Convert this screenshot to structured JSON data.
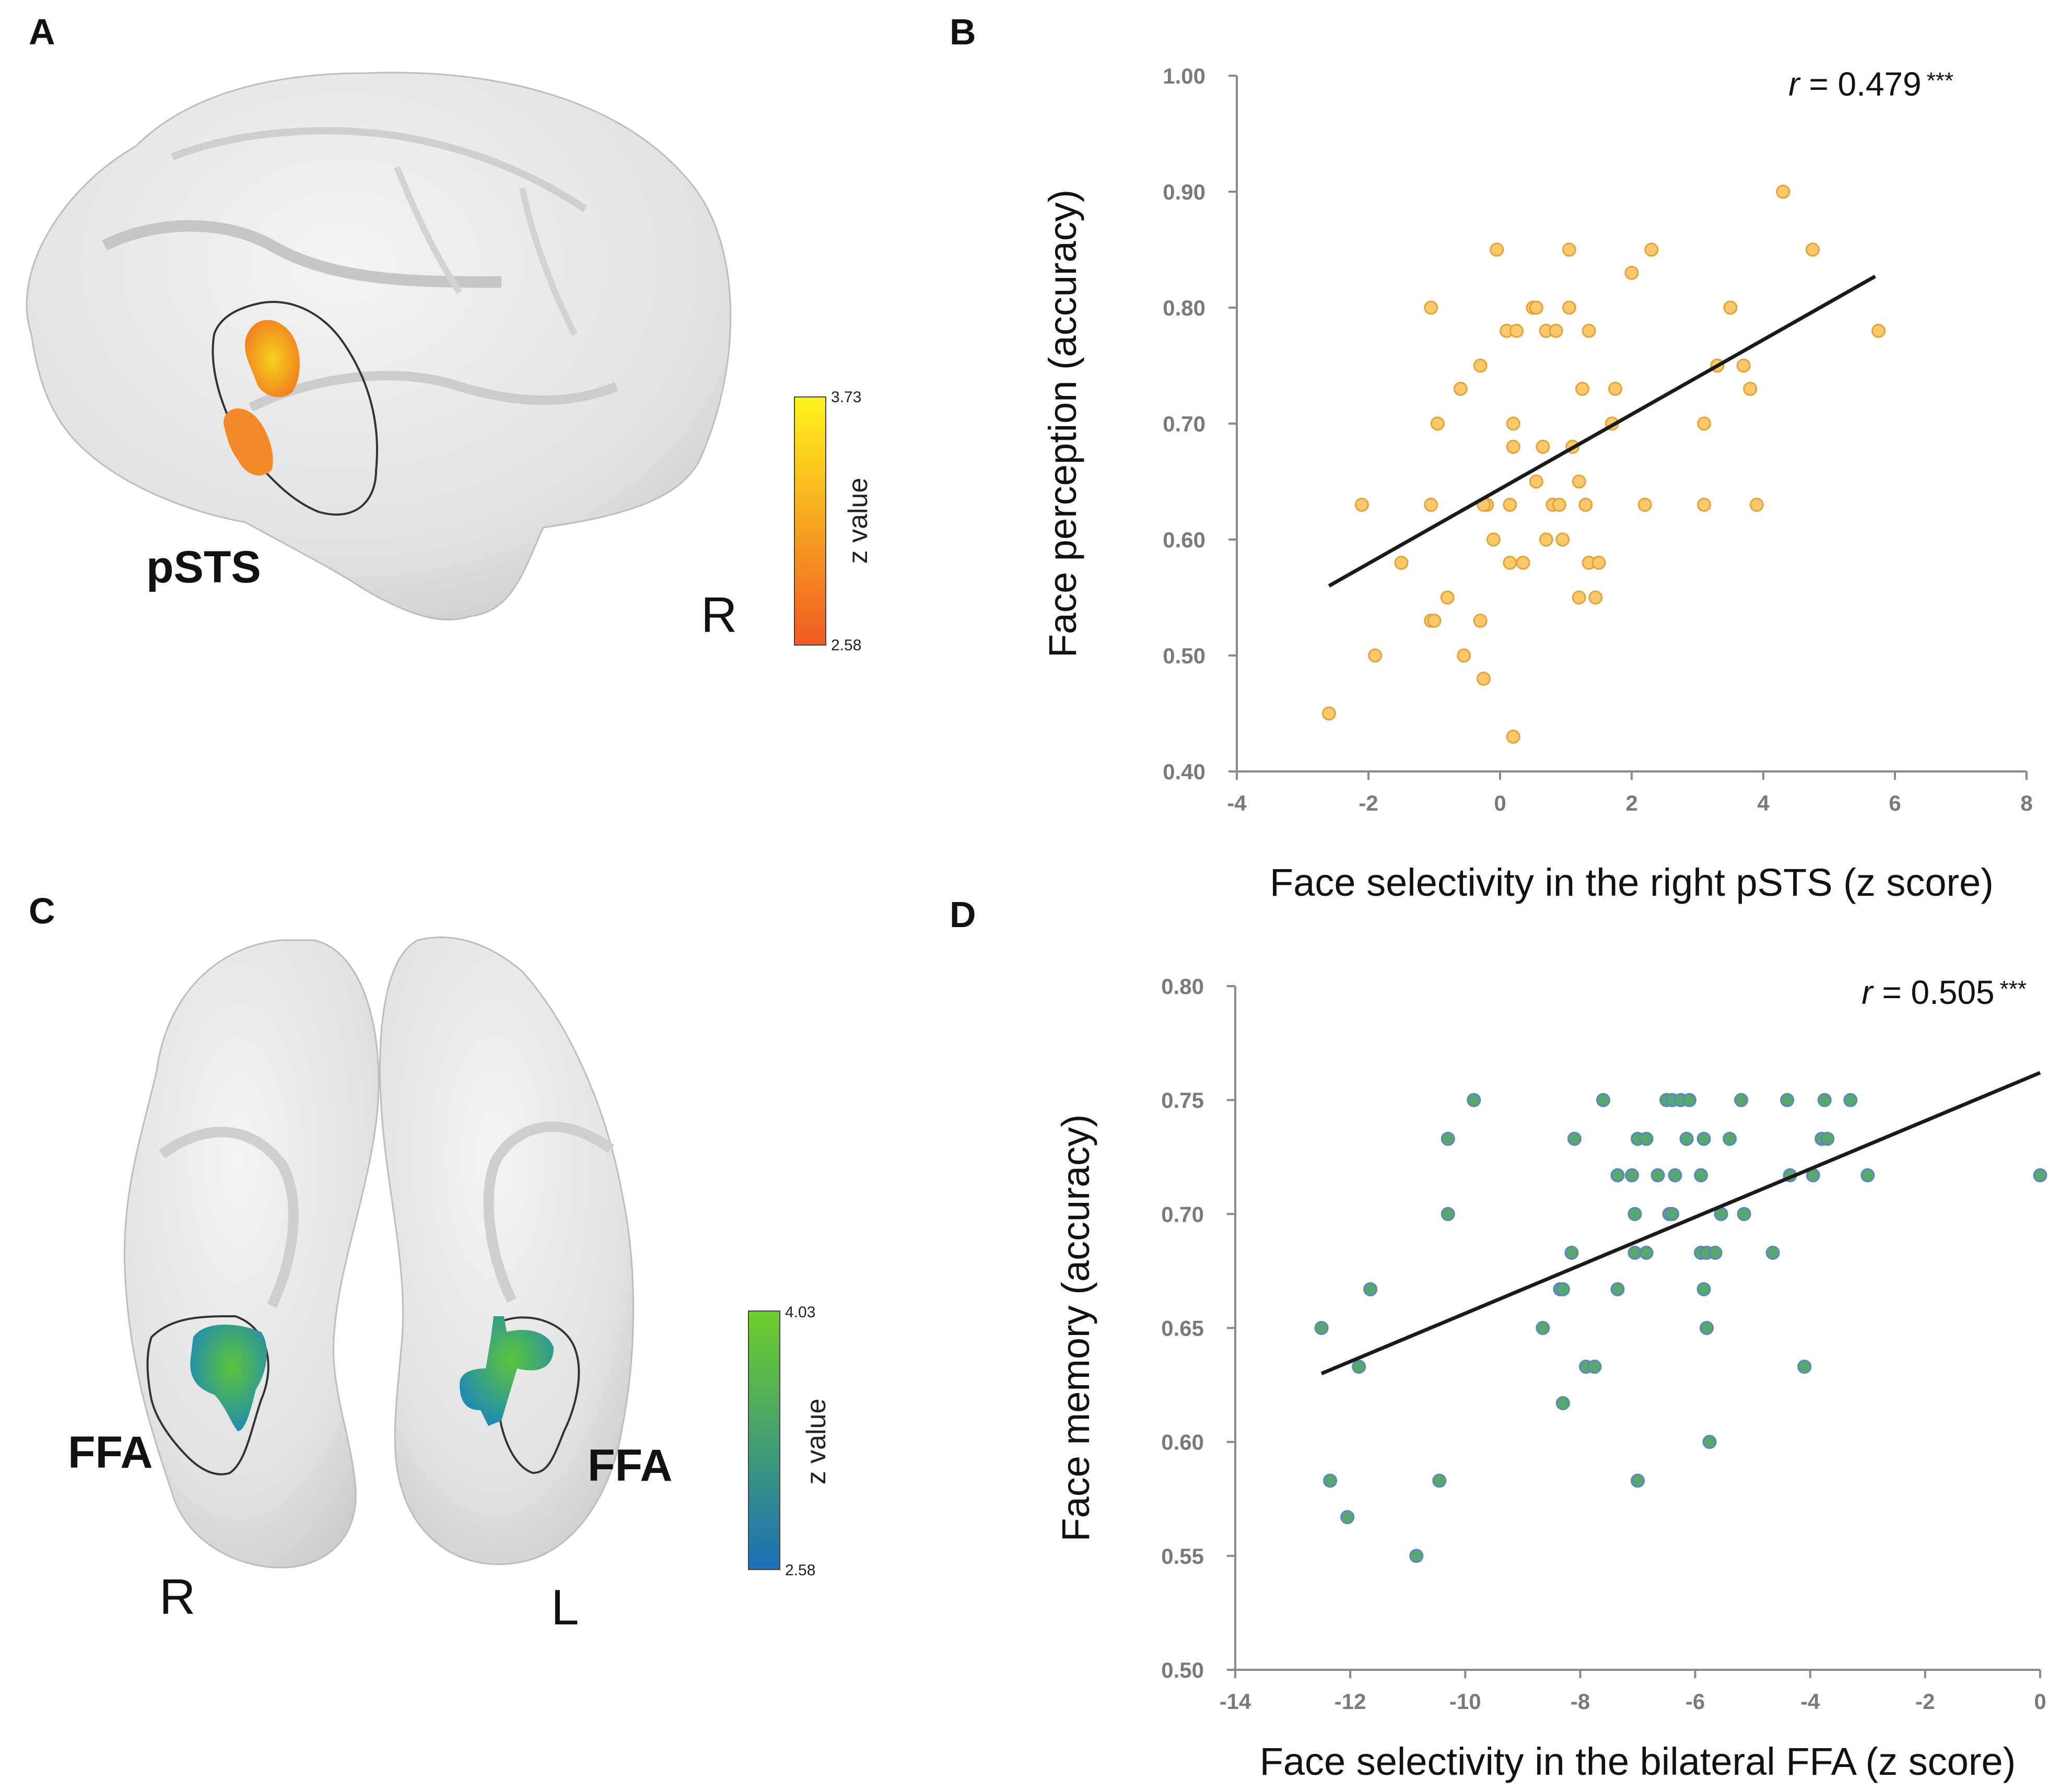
{
  "colors": {
    "orange_dot_fill": "#fbc86b",
    "orange_dot_stroke": "#e3a43c",
    "green_dot_fill": "#57a86c",
    "green_dot_stroke": "#5a86c8",
    "fit_line": "#1a1a1a",
    "axis": "#8a8a8a",
    "brain": "#e4e4e4",
    "cbar_orange_bottom": "#f05a23",
    "cbar_orange_top": "#fff41e",
    "cbar_green_bottom": "#1a6fb8",
    "cbar_green_top": "#6ecf2a"
  },
  "panels": {
    "a": {
      "letter": "A",
      "region_label": "pSTS",
      "hemisphere": "R",
      "colorbar": {
        "max": "3.73",
        "min": "2.58",
        "title": "z value"
      }
    },
    "c": {
      "letter": "C",
      "region_label_right": "FFA",
      "region_label_left": "FFA",
      "hemisphere_right": "R",
      "hemisphere_left": "L",
      "colorbar": {
        "max": "4.03",
        "min": "2.58",
        "title": "z value"
      }
    },
    "b": {
      "letter": "B"
    },
    "d": {
      "letter": "D"
    }
  },
  "chart_data": [
    {
      "id": "B",
      "type": "scatter",
      "xlabel": "Face selectivity in the right pSTS  (z score)",
      "ylabel": "Face perception  (accuracy)",
      "xlim": [
        -4,
        8
      ],
      "ylim": [
        0.4,
        1.0
      ],
      "xticks": [
        -4,
        -2,
        0,
        2,
        4,
        6,
        8
      ],
      "xtick_labels": [
        "-4",
        "-2",
        "0",
        "2",
        "4",
        "6",
        "8"
      ],
      "yticks": [
        0.4,
        0.5,
        0.6,
        0.7,
        0.8,
        0.9,
        1.0
      ],
      "ytick_labels": [
        "0.40",
        "0.50",
        "0.60",
        "0.70",
        "0.80",
        "0.90",
        "1.00"
      ],
      "stat_r": "r",
      "stat_value": " = 0.479",
      "stat_sig": "***",
      "fit_line": [
        [
          -2.6,
          0.56
        ],
        [
          5.7,
          0.827
        ]
      ],
      "points": [
        [
          -2.6,
          0.45
        ],
        [
          -2.1,
          0.63
        ],
        [
          -1.9,
          0.5
        ],
        [
          -1.5,
          0.58
        ],
        [
          -1.05,
          0.63
        ],
        [
          -1.05,
          0.53
        ],
        [
          -1.0,
          0.53
        ],
        [
          -1.05,
          0.8
        ],
        [
          -0.95,
          0.7
        ],
        [
          -0.8,
          0.55
        ],
        [
          -0.6,
          0.73
        ],
        [
          -0.55,
          0.5
        ],
        [
          -0.3,
          0.75
        ],
        [
          -0.3,
          0.53
        ],
        [
          -0.25,
          0.48
        ],
        [
          -0.2,
          0.63
        ],
        [
          -0.25,
          0.63
        ],
        [
          -0.1,
          0.6
        ],
        [
          -0.05,
          0.85
        ],
        [
          0.1,
          0.78
        ],
        [
          0.15,
          0.63
        ],
        [
          0.2,
          0.68
        ],
        [
          0.2,
          0.43
        ],
        [
          0.2,
          0.7
        ],
        [
          0.25,
          0.78
        ],
        [
          0.15,
          0.58
        ],
        [
          0.35,
          0.58
        ],
        [
          0.5,
          0.8
        ],
        [
          0.55,
          0.8
        ],
        [
          0.55,
          0.65
        ],
        [
          0.65,
          0.68
        ],
        [
          0.7,
          0.78
        ],
        [
          0.7,
          0.6
        ],
        [
          0.8,
          0.63
        ],
        [
          0.85,
          0.78
        ],
        [
          0.9,
          0.63
        ],
        [
          0.95,
          0.6
        ],
        [
          1.05,
          0.85
        ],
        [
          1.05,
          0.8
        ],
        [
          1.1,
          0.68
        ],
        [
          1.2,
          0.65
        ],
        [
          1.25,
          0.73
        ],
        [
          1.2,
          0.55
        ],
        [
          1.3,
          0.63
        ],
        [
          1.35,
          0.78
        ],
        [
          1.35,
          0.58
        ],
        [
          1.45,
          0.55
        ],
        [
          1.5,
          0.58
        ],
        [
          1.7,
          0.7
        ],
        [
          1.75,
          0.73
        ],
        [
          2.0,
          0.83
        ],
        [
          2.2,
          0.63
        ],
        [
          2.3,
          0.85
        ],
        [
          3.1,
          0.7
        ],
        [
          3.1,
          0.63
        ],
        [
          3.3,
          0.75
        ],
        [
          3.5,
          0.8
        ],
        [
          3.7,
          0.75
        ],
        [
          3.8,
          0.73
        ],
        [
          3.9,
          0.63
        ],
        [
          4.3,
          0.9
        ],
        [
          4.75,
          0.85
        ],
        [
          5.75,
          0.78
        ]
      ]
    },
    {
      "id": "D",
      "type": "scatter",
      "xlabel": "Face selectivity in the bilateral FFA (z score)",
      "ylabel": "Face memory (accuracy)",
      "xlim": [
        -14,
        0
      ],
      "ylim": [
        0.5,
        0.8
      ],
      "xticks": [
        -14,
        -12,
        -10,
        -8,
        -6,
        -4,
        -2,
        0
      ],
      "xtick_labels": [
        "-14",
        "-12",
        "-10",
        "-8",
        "-6",
        "-4",
        "-2",
        "0"
      ],
      "yticks": [
        0.5,
        0.55,
        0.6,
        0.65,
        0.7,
        0.75,
        0.8
      ],
      "ytick_labels": [
        "0.50",
        "0.55",
        "0.60",
        "0.65",
        "0.70",
        "0.75",
        "0.80"
      ],
      "stat_r": "r",
      "stat_value": " = 0.505",
      "stat_sig": "***",
      "fit_line": [
        [
          -12.5,
          0.63
        ],
        [
          0.0,
          0.762
        ]
      ],
      "points": [
        [
          -12.5,
          0.65
        ],
        [
          -12.35,
          0.583
        ],
        [
          -12.05,
          0.567
        ],
        [
          -11.85,
          0.633
        ],
        [
          -11.65,
          0.667
        ],
        [
          -10.85,
          0.55
        ],
        [
          -10.45,
          0.583
        ],
        [
          -10.3,
          0.7
        ],
        [
          -10.3,
          0.733
        ],
        [
          -9.85,
          0.75
        ],
        [
          -8.65,
          0.65
        ],
        [
          -8.35,
          0.667
        ],
        [
          -8.3,
          0.667
        ],
        [
          -8.3,
          0.617
        ],
        [
          -8.15,
          0.683
        ],
        [
          -8.1,
          0.733
        ],
        [
          -7.9,
          0.633
        ],
        [
          -7.75,
          0.633
        ],
        [
          -7.6,
          0.75
        ],
        [
          -7.35,
          0.717
        ],
        [
          -7.35,
          0.667
        ],
        [
          -7.1,
          0.717
        ],
        [
          -7.05,
          0.7
        ],
        [
          -7.05,
          0.683
        ],
        [
          -7.0,
          0.733
        ],
        [
          -7.0,
          0.583
        ],
        [
          -6.85,
          0.733
        ],
        [
          -6.85,
          0.683
        ],
        [
          -6.65,
          0.717
        ],
        [
          -6.5,
          0.75
        ],
        [
          -6.45,
          0.7
        ],
        [
          -6.4,
          0.75
        ],
        [
          -6.4,
          0.7
        ],
        [
          -6.35,
          0.717
        ],
        [
          -6.25,
          0.75
        ],
        [
          -6.15,
          0.733
        ],
        [
          -6.1,
          0.75
        ],
        [
          -5.9,
          0.717
        ],
        [
          -5.9,
          0.683
        ],
        [
          -5.85,
          0.733
        ],
        [
          -5.85,
          0.667
        ],
        [
          -5.8,
          0.683
        ],
        [
          -5.8,
          0.65
        ],
        [
          -5.75,
          0.6
        ],
        [
          -5.65,
          0.683
        ],
        [
          -5.55,
          0.7
        ],
        [
          -5.4,
          0.733
        ],
        [
          -5.2,
          0.75
        ],
        [
          -5.15,
          0.7
        ],
        [
          -4.65,
          0.683
        ],
        [
          -4.4,
          0.75
        ],
        [
          -4.35,
          0.717
        ],
        [
          -4.1,
          0.633
        ],
        [
          -3.95,
          0.717
        ],
        [
          -3.8,
          0.733
        ],
        [
          -3.75,
          0.75
        ],
        [
          -3.7,
          0.733
        ],
        [
          -3.3,
          0.75
        ],
        [
          -3.0,
          0.717
        ],
        [
          0.0,
          0.717
        ]
      ]
    }
  ]
}
